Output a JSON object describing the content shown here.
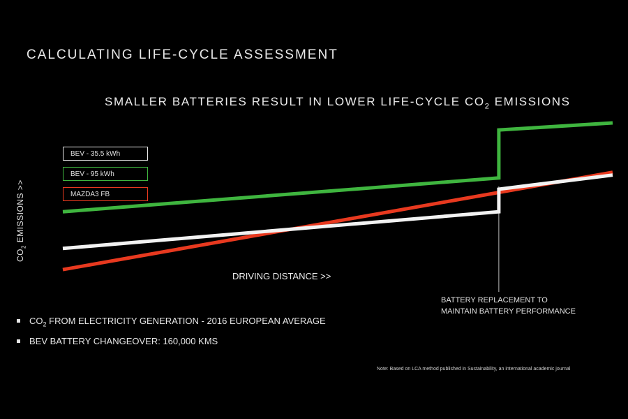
{
  "title": "CALCULATING LIFE-CYCLE ASSESSMENT",
  "subtitle_prefix": "SMALLER BATTERIES RESULT IN LOWER LIFE-CYCLE CO",
  "subtitle_sub": "2",
  "subtitle_suffix": " EMISSIONS",
  "ylabel_prefix": "CO",
  "ylabel_sub": "2",
  "ylabel_suffix": " EMISSIONS >>",
  "xlabel": "DRIVING DISTANCE >>",
  "annotation_line1": "BATTERY REPLACEMENT TO",
  "annotation_line2": "MAINTAIN BATTERY PERFORMANCE",
  "notes": [
    {
      "prefix": "CO",
      "sub": "2",
      "suffix": " FROM ELECTRICITY GENERATION - 2016 EUROPEAN AVERAGE"
    },
    {
      "prefix": "BEV BATTERY CHANGEOVER: 160,000 KMS",
      "sub": "",
      "suffix": ""
    }
  ],
  "footnote": "Note: Based on LCA method published in Sustainability, an international academic journal",
  "chart_data": {
    "type": "line",
    "xlabel": "DRIVING DISTANCE >>",
    "ylabel": "CO2 EMISSIONS >>",
    "ticks": "none",
    "xlim": [
      0,
      100
    ],
    "ylim": [
      0,
      100
    ],
    "grid": false,
    "legend_position": "top-left",
    "series": [
      {
        "name": "BEV - 35.5 kWh",
        "color": "#f2f2f2",
        "x": [
          0,
          79.3,
          79.3,
          100
        ],
        "y": [
          12,
          38,
          54,
          64
        ]
      },
      {
        "name": "BEV - 95 kWh",
        "color": "#3fb53f",
        "x": [
          0,
          79.3,
          79.3,
          100
        ],
        "y": [
          38,
          62,
          96,
          101
        ]
      },
      {
        "name": "MAZDA3 FB",
        "color": "#e8391f",
        "x": [
          0,
          100
        ],
        "y": [
          -3,
          66
        ]
      }
    ],
    "annotations": [
      {
        "text": "BATTERY REPLACEMENT TO MAINTAIN BATTERY PERFORMANCE",
        "x": 79.3
      }
    ]
  }
}
